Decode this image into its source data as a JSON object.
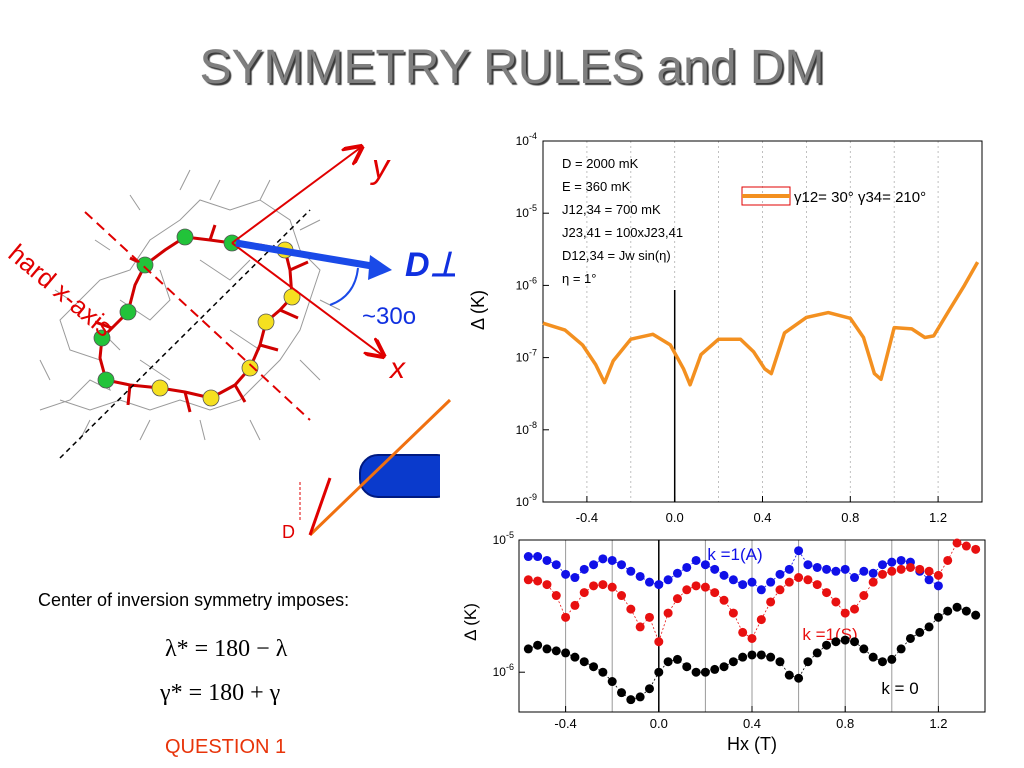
{
  "slide": {
    "title": "SYMMETRY RULES and DM",
    "caption": "Center of inversion symmetry imposes:",
    "equation_1": "λ* = 180 − λ",
    "equation_2": "γ* = 180 + γ",
    "question": "QUESTION 1"
  },
  "molecule_figure": {
    "axis_y_label": "y",
    "axis_x_label": "x",
    "hard_axis_label": "hard x-axis",
    "vector_label": "D⊥",
    "angle_label": "~30o",
    "small_vector_label": "D"
  },
  "colors": {
    "title_gray": "#7f7f7f",
    "axis_red": "#e00000",
    "vector_blue": "#1030e0",
    "curve_orange": "#f39020",
    "series_blue": "#1010e8",
    "series_red": "#e81010",
    "series_black": "#000000",
    "question_orange": "#e8340a"
  },
  "chart_data": [
    {
      "type": "line",
      "y_scale": "log",
      "ylabel": "Δ (K)",
      "xlabel": "",
      "xlim": [
        -0.6,
        1.4
      ],
      "ylim": [
        1e-09,
        0.0001
      ],
      "x_ticks": [
        "-0.4",
        "0.0",
        "0.4",
        "0.8",
        "1.2"
      ],
      "x_tick_values": [
        -0.4,
        0.0,
        0.4,
        0.8,
        1.2
      ],
      "y_ticks": [
        "10-9",
        "10-8",
        "10-7",
        "10-6",
        "10-5",
        "10-4"
      ],
      "y_tick_values": [
        1e-09,
        1e-08,
        1e-07,
        1e-06,
        1e-05,
        0.0001
      ],
      "grid": "vertical dotted",
      "vline_x": 0.0,
      "parameters": [
        "D = 2000 mK",
        "E = 360 mK",
        "J12,34 = 700 mK",
        "J23,41 = 100xJ23,41",
        "D12,34 = Jw sin(η)",
        "η = 1°"
      ],
      "legend": "γ12= 30°   γ34= 210°",
      "legend_position": "top-right",
      "series": [
        {
          "x": [
            -0.6,
            -0.5,
            -0.42,
            -0.36,
            -0.32,
            -0.28,
            -0.2,
            -0.1,
            -0.02,
            0.04,
            0.07,
            0.12,
            0.2,
            0.3,
            0.36,
            0.41,
            0.44,
            0.5,
            0.6,
            0.7,
            0.8,
            0.86,
            0.91,
            0.94,
            1.0,
            1.08,
            1.14,
            1.18,
            1.25,
            1.32,
            1.38
          ],
          "y": [
            3e-07,
            2.4e-07,
            1.5e-07,
            8e-08,
            4.5e-08,
            9e-08,
            1.8e-07,
            2.1e-07,
            1.5e-07,
            7e-08,
            4.2e-08,
            1.1e-07,
            1.8e-07,
            1.8e-07,
            1.2e-07,
            7e-08,
            6e-08,
            2.2e-07,
            3.6e-07,
            4.2e-07,
            3.5e-07,
            1.9e-07,
            6e-08,
            5e-08,
            2.6e-07,
            2.5e-07,
            1.9e-07,
            2e-07,
            4.5e-07,
            1e-06,
            2.1e-06
          ]
        }
      ]
    },
    {
      "type": "scatter",
      "y_scale": "log",
      "ylabel": "Δ (K)",
      "xlabel": "Hx (T)",
      "xlim": [
        -0.6,
        1.4
      ],
      "ylim": [
        5e-07,
        1e-05
      ],
      "x_ticks": [
        "-0.4",
        "0.0",
        "0.4",
        "0.8",
        "1.2"
      ],
      "x_tick_values": [
        -0.4,
        0.0,
        0.4,
        0.8,
        1.2
      ],
      "y_ticks": [
        "10-6",
        "10-5"
      ],
      "y_tick_values": [
        1e-06,
        1e-05
      ],
      "grid": "vertical",
      "vline_x": 0.0,
      "series": [
        {
          "name": "k =1(A)",
          "color": "#1010e8",
          "x": [
            -0.56,
            -0.52,
            -0.48,
            -0.44,
            -0.4,
            -0.36,
            -0.32,
            -0.28,
            -0.24,
            -0.2,
            -0.16,
            -0.12,
            -0.08,
            -0.04,
            0.0,
            0.04,
            0.08,
            0.12,
            0.16,
            0.2,
            0.24,
            0.28,
            0.32,
            0.36,
            0.4,
            0.44,
            0.48,
            0.52,
            0.56,
            0.6,
            0.64,
            0.68,
            0.72,
            0.76,
            0.8,
            0.84,
            0.88,
            0.92,
            0.96,
            1.0,
            1.04,
            1.08,
            1.12,
            1.16,
            1.2
          ],
          "y": [
            7.5e-06,
            7.5e-06,
            7e-06,
            6.5e-06,
            5.5e-06,
            5.2e-06,
            6e-06,
            6.5e-06,
            7.2e-06,
            7e-06,
            6.5e-06,
            5.8e-06,
            5.3e-06,
            4.8e-06,
            4.6e-06,
            5e-06,
            5.6e-06,
            6.2e-06,
            7e-06,
            6.5e-06,
            6e-06,
            5.4e-06,
            5e-06,
            4.6e-06,
            4.8e-06,
            4.2e-06,
            4.8e-06,
            5.5e-06,
            6e-06,
            8.3e-06,
            6.5e-06,
            6.2e-06,
            6e-06,
            5.8e-06,
            6e-06,
            5.2e-06,
            5.8e-06,
            5.6e-06,
            6.5e-06,
            6.8e-06,
            7e-06,
            6.8e-06,
            5.8e-06,
            5e-06,
            4.5e-06
          ]
        },
        {
          "name": "k =1(S)",
          "color": "#e81010",
          "x": [
            -0.56,
            -0.52,
            -0.48,
            -0.44,
            -0.4,
            -0.36,
            -0.32,
            -0.28,
            -0.24,
            -0.2,
            -0.16,
            -0.12,
            -0.08,
            -0.04,
            0.0,
            0.04,
            0.08,
            0.12,
            0.16,
            0.2,
            0.24,
            0.28,
            0.32,
            0.36,
            0.4,
            0.44,
            0.48,
            0.52,
            0.56,
            0.6,
            0.64,
            0.68,
            0.72,
            0.76,
            0.8,
            0.84,
            0.88,
            0.92,
            0.96,
            1.0,
            1.04,
            1.08,
            1.12,
            1.16,
            1.2,
            1.24,
            1.28,
            1.32,
            1.36
          ],
          "y": [
            5e-06,
            4.9e-06,
            4.6e-06,
            3.8e-06,
            2.6e-06,
            3.2e-06,
            4e-06,
            4.5e-06,
            4.6e-06,
            4.4e-06,
            3.8e-06,
            3e-06,
            2.2e-06,
            2.6e-06,
            1.7e-06,
            2.8e-06,
            3.6e-06,
            4.2e-06,
            4.5e-06,
            4.4e-06,
            4e-06,
            3.5e-06,
            2.8e-06,
            2e-06,
            1.8e-06,
            2.5e-06,
            3.4e-06,
            4.2e-06,
            4.8e-06,
            5.2e-06,
            5e-06,
            4.6e-06,
            4e-06,
            3.4e-06,
            2.8e-06,
            3e-06,
            3.8e-06,
            4.8e-06,
            5.5e-06,
            5.8e-06,
            6e-06,
            6.2e-06,
            6e-06,
            5.8e-06,
            5.4e-06,
            7e-06,
            9.5e-06,
            9e-06,
            8.5e-06
          ]
        },
        {
          "name": "k = 0",
          "color": "#000000",
          "x": [
            -0.56,
            -0.52,
            -0.48,
            -0.44,
            -0.4,
            -0.36,
            -0.32,
            -0.28,
            -0.24,
            -0.2,
            -0.16,
            -0.12,
            -0.08,
            -0.04,
            0.0,
            0.04,
            0.08,
            0.12,
            0.16,
            0.2,
            0.24,
            0.28,
            0.32,
            0.36,
            0.4,
            0.44,
            0.48,
            0.52,
            0.56,
            0.6,
            0.64,
            0.68,
            0.72,
            0.76,
            0.8,
            0.84,
            0.88,
            0.92,
            0.96,
            1.0,
            1.04,
            1.08,
            1.12,
            1.16,
            1.2,
            1.24,
            1.28,
            1.32,
            1.36
          ],
          "y": [
            1.5e-06,
            1.6e-06,
            1.5e-06,
            1.45e-06,
            1.4e-06,
            1.3e-06,
            1.2e-06,
            1.1e-06,
            1e-06,
            8.5e-07,
            7e-07,
            6.2e-07,
            6.5e-07,
            7.5e-07,
            1e-06,
            1.2e-06,
            1.25e-06,
            1.1e-06,
            1e-06,
            1e-06,
            1.05e-06,
            1.1e-06,
            1.2e-06,
            1.3e-06,
            1.35e-06,
            1.35e-06,
            1.3e-06,
            1.2e-06,
            9.5e-07,
            9e-07,
            1.2e-06,
            1.4e-06,
            1.6e-06,
            1.7e-06,
            1.75e-06,
            1.7e-06,
            1.5e-06,
            1.3e-06,
            1.2e-06,
            1.25e-06,
            1.5e-06,
            1.8e-06,
            2e-06,
            2.2e-06,
            2.6e-06,
            2.9e-06,
            3.1e-06,
            2.9e-06,
            2.7e-06
          ]
        }
      ]
    }
  ]
}
